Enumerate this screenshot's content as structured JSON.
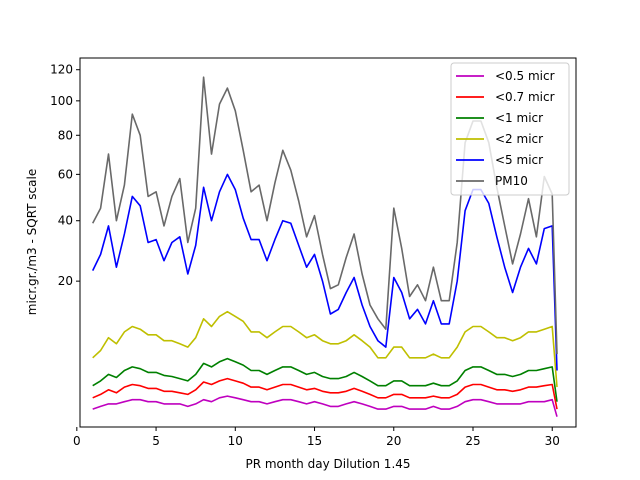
{
  "chart_data": {
    "type": "line",
    "title": "",
    "xlabel": "PR month day  Dilution 1.45",
    "ylabel": "micr.gr./m3 - SQRT scale",
    "y_scale": "sqrt",
    "xlim": [
      0.2,
      31.5
    ],
    "ylim": [
      0,
      128
    ],
    "x_ticks": [
      0,
      5,
      10,
      15,
      20,
      25,
      30
    ],
    "y_ticks": [
      20,
      40,
      60,
      80,
      100,
      120
    ],
    "grid": false,
    "legend_position": "top-right",
    "x": [
      1,
      1.5,
      2,
      2.5,
      3,
      3.5,
      4,
      4.5,
      5,
      5.5,
      6,
      6.5,
      7,
      7.5,
      8,
      8.5,
      9,
      9.5,
      10,
      10.5,
      11,
      11.5,
      12,
      12.5,
      13,
      13.5,
      14,
      14.5,
      15,
      15.5,
      16,
      16.5,
      17,
      17.5,
      18,
      18.5,
      19,
      19.5,
      20,
      20.5,
      21,
      21.5,
      22,
      22.5,
      23,
      23.5,
      24,
      24.5,
      25,
      25.5,
      26,
      26.5,
      27,
      27.5,
      28,
      28.5,
      29,
      29.5,
      30,
      30.3
    ],
    "series": [
      {
        "name": "<0.5 micr",
        "color": "#bf00bf",
        "values": [
          0.3,
          0.4,
          0.5,
          0.5,
          0.6,
          0.7,
          0.7,
          0.6,
          0.6,
          0.5,
          0.5,
          0.5,
          0.4,
          0.5,
          0.7,
          0.6,
          0.8,
          0.9,
          0.8,
          0.7,
          0.6,
          0.6,
          0.5,
          0.6,
          0.7,
          0.7,
          0.6,
          0.5,
          0.6,
          0.5,
          0.4,
          0.4,
          0.5,
          0.6,
          0.5,
          0.4,
          0.3,
          0.3,
          0.4,
          0.4,
          0.3,
          0.3,
          0.3,
          0.4,
          0.3,
          0.3,
          0.4,
          0.6,
          0.7,
          0.7,
          0.6,
          0.5,
          0.5,
          0.5,
          0.5,
          0.6,
          0.6,
          0.6,
          0.7,
          0.1
        ]
      },
      {
        "name": "<0.7 micr",
        "color": "#ff0000",
        "values": [
          0.8,
          1.0,
          1.3,
          1.1,
          1.5,
          1.7,
          1.6,
          1.4,
          1.4,
          1.2,
          1.2,
          1.1,
          1.0,
          1.3,
          1.9,
          1.7,
          2.0,
          2.2,
          2.0,
          1.8,
          1.5,
          1.5,
          1.3,
          1.5,
          1.7,
          1.7,
          1.5,
          1.3,
          1.4,
          1.2,
          1.1,
          1.1,
          1.2,
          1.4,
          1.2,
          1.0,
          0.8,
          0.8,
          1.0,
          1.0,
          0.8,
          0.8,
          0.8,
          0.9,
          0.8,
          0.8,
          1.0,
          1.5,
          1.7,
          1.7,
          1.5,
          1.3,
          1.3,
          1.2,
          1.3,
          1.5,
          1.5,
          1.6,
          1.7,
          0.3
        ]
      },
      {
        "name": "<1 micr",
        "color": "#008000",
        "values": [
          1.6,
          2.0,
          2.6,
          2.3,
          3.0,
          3.4,
          3.2,
          2.8,
          2.8,
          2.5,
          2.4,
          2.2,
          2.0,
          2.6,
          3.8,
          3.4,
          4.0,
          4.4,
          4.0,
          3.6,
          3.0,
          3.0,
          2.6,
          3.0,
          3.4,
          3.4,
          3.0,
          2.6,
          2.8,
          2.4,
          2.2,
          2.2,
          2.4,
          2.8,
          2.4,
          2.0,
          1.6,
          1.6,
          2.0,
          2.0,
          1.6,
          1.6,
          1.6,
          1.8,
          1.6,
          1.6,
          2.0,
          3.0,
          3.4,
          3.4,
          3.0,
          2.6,
          2.6,
          2.4,
          2.6,
          3.0,
          3.0,
          3.2,
          3.4,
          0.6
        ]
      },
      {
        "name": "<2 micr",
        "color": "#bfbf00",
        "values": [
          4.5,
          5.5,
          7.5,
          6.5,
          8.5,
          9.5,
          9.0,
          8.0,
          8.0,
          7.0,
          7.0,
          6.5,
          6.0,
          7.5,
          11.0,
          9.5,
          11.5,
          12.5,
          11.5,
          10.5,
          8.5,
          8.5,
          7.5,
          8.5,
          9.5,
          9.5,
          8.5,
          7.5,
          8.0,
          7.0,
          6.5,
          6.5,
          7.0,
          8.0,
          7.0,
          6.0,
          4.5,
          4.5,
          6.0,
          6.0,
          4.5,
          4.5,
          4.5,
          5.0,
          4.5,
          4.5,
          6.0,
          8.5,
          9.5,
          9.5,
          8.5,
          7.5,
          7.5,
          7.0,
          7.5,
          8.5,
          8.5,
          9.0,
          9.5,
          1.5
        ]
      },
      {
        "name": "<5 micr",
        "color": "#0000ff",
        "values": [
          23,
          28,
          38,
          24,
          35,
          50,
          46,
          32,
          33,
          26,
          32,
          34,
          22,
          31,
          54,
          40,
          52,
          60,
          53,
          41,
          33,
          33,
          26,
          33,
          40,
          39,
          31,
          24,
          28,
          20,
          12,
          13,
          17,
          21,
          14,
          9.5,
          7,
          6,
          21,
          17,
          11,
          13,
          10,
          15,
          10,
          10,
          20,
          44,
          53,
          53,
          47,
          34,
          24,
          17,
          24,
          30,
          25,
          37,
          38,
          3
        ]
      },
      {
        "name": "PM10",
        "color": "#696969",
        "values": [
          39,
          45,
          70,
          40,
          55,
          92,
          80,
          50,
          52,
          38,
          50,
          58,
          32,
          45,
          115,
          70,
          98,
          108,
          94,
          72,
          52,
          55,
          40,
          56,
          72,
          62,
          48,
          34,
          42,
          28,
          18,
          19,
          27,
          35,
          22,
          14,
          11,
          9,
          45,
          30,
          16,
          19,
          15,
          24,
          15,
          15,
          32,
          76,
          88,
          88,
          76,
          54,
          38,
          25,
          35,
          49,
          34,
          59,
          51,
          5
        ]
      }
    ]
  }
}
